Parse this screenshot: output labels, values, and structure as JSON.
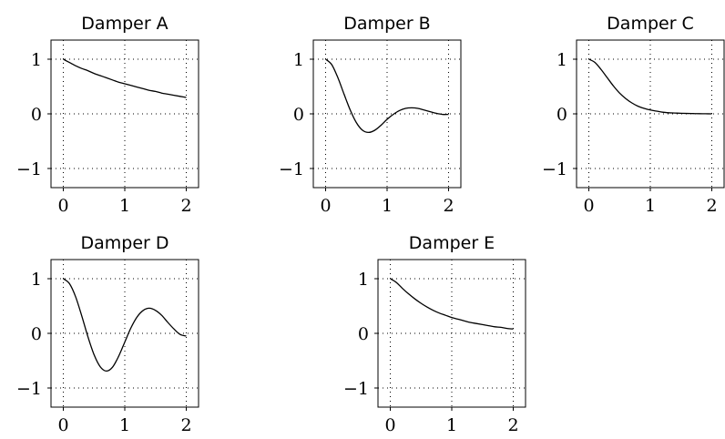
{
  "figure": {
    "background": "#ffffff",
    "line_color": "#000000"
  },
  "chart_data": [
    {
      "type": "line",
      "title": "Damper A",
      "xlabel": "",
      "ylabel": "",
      "xlim": [
        -0.2,
        2.2
      ],
      "ylim": [
        -1.35,
        1.35
      ],
      "xticks": [
        0,
        1,
        2
      ],
      "yticks": [
        -1,
        0,
        1
      ],
      "xtick_labels": [
        "0",
        "1",
        "2"
      ],
      "ytick_labels": [
        "−1",
        "0",
        "1"
      ],
      "grid": true,
      "series": [
        {
          "x": [
            0,
            0.1,
            0.2,
            0.3,
            0.4,
            0.5,
            0.6,
            0.7,
            0.8,
            0.9,
            1.0,
            1.1,
            1.2,
            1.3,
            1.4,
            1.5,
            1.6,
            1.7,
            1.8,
            1.9,
            2.0
          ],
          "y": [
            1.0,
            0.94,
            0.88,
            0.83,
            0.79,
            0.74,
            0.7,
            0.66,
            0.62,
            0.58,
            0.55,
            0.52,
            0.49,
            0.46,
            0.43,
            0.41,
            0.38,
            0.36,
            0.34,
            0.32,
            0.3
          ]
        }
      ]
    },
    {
      "type": "line",
      "title": "Damper B",
      "xlabel": "",
      "ylabel": "",
      "xlim": [
        -0.2,
        2.2
      ],
      "ylim": [
        -1.35,
        1.35
      ],
      "xticks": [
        0,
        1,
        2
      ],
      "yticks": [
        -1,
        0,
        1
      ],
      "xtick_labels": [
        "0",
        "1",
        "2"
      ],
      "ytick_labels": [
        "−1",
        "0",
        "1"
      ],
      "grid": true,
      "series": [
        {
          "x": [
            0,
            0.1,
            0.2,
            0.3,
            0.4,
            0.5,
            0.6,
            0.7,
            0.8,
            0.9,
            1.0,
            1.1,
            1.2,
            1.3,
            1.4,
            1.5,
            1.6,
            1.7,
            1.8,
            1.9,
            2.0
          ],
          "y": [
            1.0,
            0.9,
            0.66,
            0.36,
            0.07,
            -0.16,
            -0.3,
            -0.34,
            -0.3,
            -0.21,
            -0.1,
            -0.01,
            0.06,
            0.1,
            0.11,
            0.1,
            0.07,
            0.04,
            0.01,
            -0.01,
            -0.01
          ]
        }
      ]
    },
    {
      "type": "line",
      "title": "Damper C",
      "xlabel": "",
      "ylabel": "",
      "xlim": [
        -0.2,
        2.2
      ],
      "ylim": [
        -1.35,
        1.35
      ],
      "xticks": [
        0,
        1,
        2
      ],
      "yticks": [
        -1,
        0,
        1
      ],
      "xtick_labels": [
        "0",
        "1",
        "2"
      ],
      "ytick_labels": [
        "−1",
        "0",
        "1"
      ],
      "grid": true,
      "series": [
        {
          "x": [
            0,
            0.1,
            0.2,
            0.3,
            0.4,
            0.5,
            0.6,
            0.7,
            0.8,
            0.9,
            1.0,
            1.1,
            1.2,
            1.3,
            1.4,
            1.5,
            1.6,
            1.7,
            1.8,
            1.9,
            2.0
          ],
          "y": [
            1.0,
            0.94,
            0.81,
            0.66,
            0.51,
            0.38,
            0.28,
            0.2,
            0.14,
            0.1,
            0.07,
            0.05,
            0.03,
            0.02,
            0.015,
            0.01,
            0.007,
            0.005,
            0.003,
            0.002,
            0.0
          ]
        }
      ]
    },
    {
      "type": "line",
      "title": "Damper D",
      "xlabel": "",
      "ylabel": "",
      "xlim": [
        -0.2,
        2.2
      ],
      "ylim": [
        -1.35,
        1.35
      ],
      "xticks": [
        0,
        1,
        2
      ],
      "yticks": [
        -1,
        0,
        1
      ],
      "xtick_labels": [
        "0",
        "1",
        "2"
      ],
      "ytick_labels": [
        "−1",
        "0",
        "1"
      ],
      "grid": true,
      "series": [
        {
          "x": [
            0,
            0.1,
            0.2,
            0.3,
            0.4,
            0.5,
            0.6,
            0.7,
            0.8,
            0.9,
            1.0,
            1.1,
            1.2,
            1.3,
            1.4,
            1.5,
            1.6,
            1.7,
            1.8,
            1.9,
            2.0
          ],
          "y": [
            1.0,
            0.91,
            0.67,
            0.32,
            -0.06,
            -0.39,
            -0.61,
            -0.69,
            -0.62,
            -0.42,
            -0.16,
            0.1,
            0.3,
            0.42,
            0.46,
            0.42,
            0.33,
            0.2,
            0.08,
            -0.02,
            -0.05
          ]
        }
      ]
    },
    {
      "type": "line",
      "title": "Damper E",
      "xlabel": "",
      "ylabel": "",
      "xlim": [
        -0.2,
        2.2
      ],
      "ylim": [
        -1.35,
        1.35
      ],
      "xticks": [
        0,
        1,
        2
      ],
      "yticks": [
        -1,
        0,
        1
      ],
      "xtick_labels": [
        "0",
        "1",
        "2"
      ],
      "ytick_labels": [
        "−1",
        "0",
        "1"
      ],
      "grid": true,
      "series": [
        {
          "x": [
            0,
            0.1,
            0.2,
            0.3,
            0.4,
            0.5,
            0.6,
            0.7,
            0.8,
            0.9,
            1.0,
            1.1,
            1.2,
            1.3,
            1.4,
            1.5,
            1.6,
            1.7,
            1.8,
            1.9,
            2.0
          ],
          "y": [
            1.0,
            0.93,
            0.82,
            0.72,
            0.63,
            0.55,
            0.48,
            0.42,
            0.37,
            0.33,
            0.29,
            0.26,
            0.23,
            0.2,
            0.18,
            0.16,
            0.14,
            0.12,
            0.11,
            0.09,
            0.08
          ]
        }
      ]
    }
  ]
}
